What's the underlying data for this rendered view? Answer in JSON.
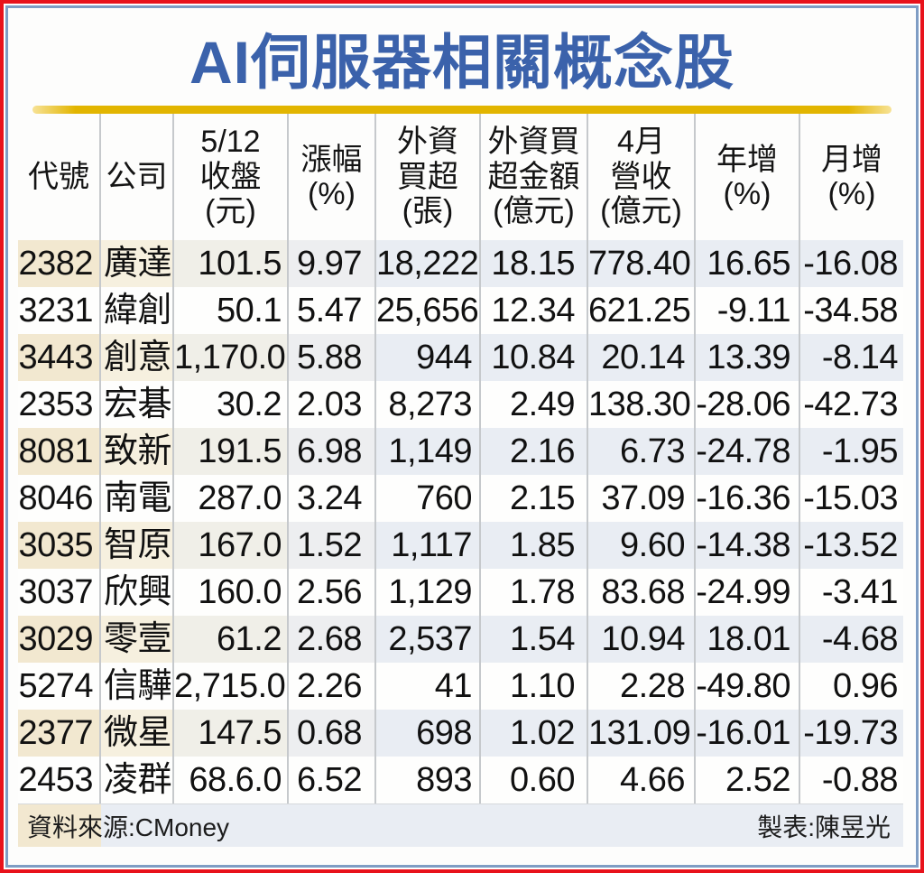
{
  "title": "AI伺服器相關概念股",
  "chart_data": {
    "type": "table",
    "title": "AI伺服器相關概念股",
    "columns": [
      "代號",
      "公司",
      "5/12收盤(元)",
      "漲幅(%)",
      "外資買超(張)",
      "外資買超金額(億元)",
      "4月營收(億元)",
      "年增(%)",
      "月增(%)"
    ],
    "header_lines": [
      "代號",
      "公司",
      "5/12\n收盤\n(元)",
      "漲幅\n(%)",
      "外資\n買超\n(張)",
      "外資買\n超金額\n(億元)",
      "4月\n營收\n(億元)",
      "年增\n(%)",
      "月增\n(%)"
    ],
    "rows": [
      [
        "2382",
        "廣達",
        "101.5",
        "9.97",
        "18,222",
        "18.15",
        "778.40",
        "16.65",
        "-16.08"
      ],
      [
        "3231",
        "緯創",
        "50.1",
        "5.47",
        "25,656",
        "12.34",
        "621.25",
        "-9.11",
        "-34.58"
      ],
      [
        "3443",
        "創意",
        "1,170.0",
        "5.88",
        "944",
        "10.84",
        "20.14",
        "13.39",
        "-8.14"
      ],
      [
        "2353",
        "宏碁",
        "30.2",
        "2.03",
        "8,273",
        "2.49",
        "138.30",
        "-28.06",
        "-42.73"
      ],
      [
        "8081",
        "致新",
        "191.5",
        "6.98",
        "1,149",
        "2.16",
        "6.73",
        "-24.78",
        "-1.95"
      ],
      [
        "8046",
        "南電",
        "287.0",
        "3.24",
        "760",
        "2.15",
        "37.09",
        "-16.36",
        "-15.03"
      ],
      [
        "3035",
        "智原",
        "167.0",
        "1.52",
        "1,117",
        "1.85",
        "9.60",
        "-14.38",
        "-13.52"
      ],
      [
        "3037",
        "欣興",
        "160.0",
        "2.56",
        "1,129",
        "1.78",
        "83.68",
        "-24.99",
        "-3.41"
      ],
      [
        "3029",
        "零壹",
        "61.2",
        "2.68",
        "2,537",
        "1.54",
        "10.94",
        "18.01",
        "-4.68"
      ],
      [
        "5274",
        "信驊",
        "2,715.0",
        "2.26",
        "41",
        "1.10",
        "2.28",
        "-49.80",
        "0.96"
      ],
      [
        "2377",
        "微星",
        "147.5",
        "0.68",
        "698",
        "1.02",
        "131.09",
        "-16.01",
        "-19.73"
      ],
      [
        "2453",
        "凌群",
        "68.6.0",
        "6.52",
        "893",
        "0.60",
        "4.66",
        "2.52",
        "-0.88"
      ]
    ]
  },
  "footer": {
    "source": "資料來源:CMoney",
    "credit": "製表:陳昱光"
  },
  "colors": {
    "frame_red": "#e8121b",
    "frame_blue": "#7f9dc4",
    "title_blue": "#3b62ab",
    "divider_gold": "#e2b500",
    "stripe_beige": "#f2e8d0",
    "stripe_blue_gray": "#e9edf3",
    "divider_gray": "#c6c9cc",
    "text": "#111111"
  }
}
